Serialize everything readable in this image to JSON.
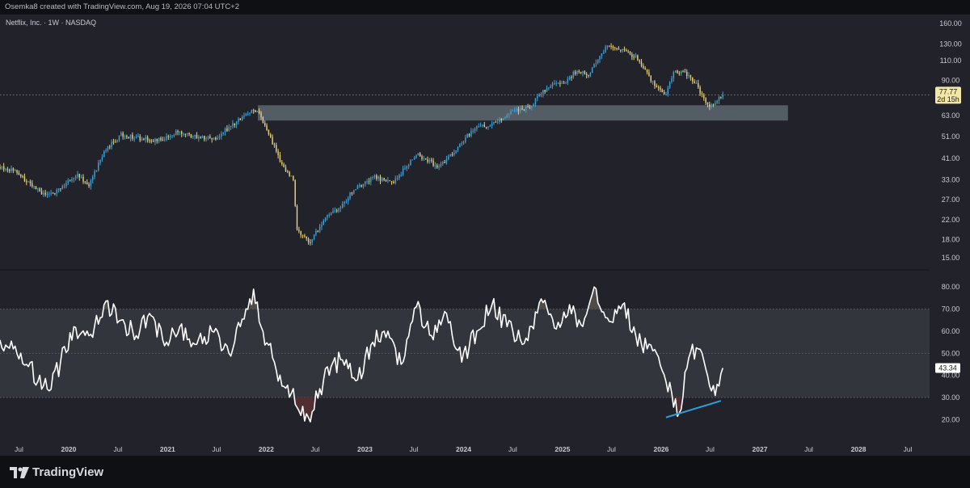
{
  "header": {
    "attribution": "Osemka8 created with TradingView.com, Aug 19, 2026 07:04 UTC+2"
  },
  "footer": {
    "brand": "TradingView"
  },
  "colors": {
    "background": "#22232a",
    "bar_background": "#0f1013",
    "candle_up": "#3fa0d6",
    "candle_down": "#e8cf7a",
    "rsi_line": "#ffffff",
    "rsi_band": "#33353d",
    "zone": "#5d6670",
    "divergence": "#2a9fd8",
    "price_badge": "#f3e7a3",
    "oversold_fill": "#5a2f34",
    "overbought_fill": "#58524a"
  },
  "chart_data": [
    {
      "type": "candlestick",
      "title": "Netflix, Inc. · 1W · NASDAQ",
      "y_scale": "log",
      "ylim": [
        13.5,
        175
      ],
      "y_ticks": [
        160.0,
        130.0,
        110.0,
        90.0,
        63.0,
        51.0,
        41.0,
        33.0,
        27.0,
        22.0,
        18.0,
        15.0
      ],
      "x_ticks": [
        "Jul",
        "2020",
        "Jul",
        "2021",
        "Jul",
        "2022",
        "Jul",
        "2023",
        "Jul",
        "2024",
        "Jul",
        "2025",
        "Jul",
        "2026",
        "Jul",
        "2027",
        "Jul",
        "2028",
        "Jul"
      ],
      "x_tick_dates": [
        "2019-07-01",
        "2020-01-01",
        "2020-07-01",
        "2021-01-01",
        "2021-07-01",
        "2022-01-01",
        "2022-07-01",
        "2023-01-01",
        "2023-07-01",
        "2024-01-01",
        "2024-07-01",
        "2025-01-01",
        "2025-07-01",
        "2026-01-01",
        "2026-07-01",
        "2027-01-01",
        "2027-07-01",
        "2028-01-01",
        "2028-07-01"
      ],
      "xlim": [
        "2019-04-22",
        "2028-09-20"
      ],
      "last_price": "77.77",
      "countdown": "2d 15h",
      "price_path": [
        [
          "2019-04-22",
          37.5
        ],
        [
          "2019-06-10",
          36.5
        ],
        [
          "2019-08-05",
          32.0
        ],
        [
          "2019-10-07",
          28.0
        ],
        [
          "2019-11-25",
          30.0
        ],
        [
          "2020-02-03",
          35.0
        ],
        [
          "2020-03-16",
          31.0
        ],
        [
          "2020-05-11",
          44.0
        ],
        [
          "2020-07-13",
          52.0
        ],
        [
          "2020-09-21",
          50.0
        ],
        [
          "2020-11-23",
          49.0
        ],
        [
          "2021-02-01",
          53.0
        ],
        [
          "2021-04-19",
          51.0
        ],
        [
          "2021-06-21",
          50.0
        ],
        [
          "2021-09-06",
          58.0
        ],
        [
          "2021-11-15",
          68.0
        ],
        [
          "2021-12-13",
          62.0
        ],
        [
          "2022-01-17",
          50.0
        ],
        [
          "2022-03-07",
          37.0
        ],
        [
          "2022-04-11",
          33.0
        ],
        [
          "2022-04-25",
          20.0
        ],
        [
          "2022-06-13",
          17.5
        ],
        [
          "2022-08-01",
          22.0
        ],
        [
          "2022-10-03",
          25.0
        ],
        [
          "2022-11-21",
          30.0
        ],
        [
          "2023-02-06",
          34.0
        ],
        [
          "2023-04-17",
          32.0
        ],
        [
          "2023-07-10",
          43.0
        ],
        [
          "2023-10-02",
          37.5
        ],
        [
          "2023-12-04",
          45.0
        ],
        [
          "2024-02-12",
          56.0
        ],
        [
          "2024-04-22",
          58.0
        ],
        [
          "2024-06-24",
          66.0
        ],
        [
          "2024-08-26",
          68.0
        ],
        [
          "2024-11-11",
          85.0
        ],
        [
          "2025-01-06",
          88.0
        ],
        [
          "2025-02-17",
          98.0
        ],
        [
          "2025-04-07",
          96.0
        ],
        [
          "2025-06-09",
          124.0
        ],
        [
          "2025-07-07",
          128.0
        ],
        [
          "2025-08-25",
          120.0
        ],
        [
          "2025-10-06",
          112.0
        ],
        [
          "2025-11-24",
          90.0
        ],
        [
          "2026-01-19",
          78.0
        ],
        [
          "2026-02-16",
          98.0
        ],
        [
          "2026-03-23",
          99.0
        ],
        [
          "2026-05-11",
          86.0
        ],
        [
          "2026-06-29",
          68.0
        ],
        [
          "2026-08-17",
          77.77
        ]
      ],
      "annotations": [
        {
          "type": "zone",
          "label": "support-resistance",
          "y_range": [
            60.0,
            70.0
          ],
          "x_range": [
            "2021-12-01",
            "2027-04-15"
          ]
        },
        {
          "type": "dotted-line",
          "y": 77.77
        }
      ]
    },
    {
      "type": "line",
      "title": "",
      "series_name": "",
      "ylim": [
        11,
        87
      ],
      "y_ticks": [
        80.0,
        70.0,
        60.0,
        50.0,
        40.0,
        30.0,
        20.0
      ],
      "band": [
        30,
        70
      ],
      "midline": 50,
      "last_value": "43.34",
      "x": [
        "2019-04-22",
        "2019-06-10",
        "2019-08-05",
        "2019-10-21",
        "2019-12-02",
        "2020-01-20",
        "2020-03-16",
        "2020-05-11",
        "2020-07-13",
        "2020-09-07",
        "2020-10-26",
        "2020-12-14",
        "2021-02-15",
        "2021-04-19",
        "2021-06-14",
        "2021-08-16",
        "2021-09-27",
        "2021-11-15",
        "2021-12-13",
        "2022-01-24",
        "2022-03-07",
        "2022-04-04",
        "2022-05-02",
        "2022-06-06",
        "2022-07-18",
        "2022-08-29",
        "2022-10-10",
        "2022-12-05",
        "2023-01-30",
        "2023-03-27",
        "2023-05-15",
        "2023-07-10",
        "2023-09-04",
        "2023-10-30",
        "2023-12-25",
        "2024-02-19",
        "2024-04-15",
        "2024-06-10",
        "2024-08-05",
        "2024-10-28",
        "2024-12-09",
        "2025-01-27",
        "2025-03-10",
        "2025-04-28",
        "2025-06-16",
        "2025-08-11",
        "2025-09-29",
        "2025-11-10",
        "2025-12-15",
        "2026-01-19",
        "2026-02-09",
        "2026-03-09",
        "2026-04-13",
        "2026-05-18",
        "2026-06-15",
        "2026-07-06",
        "2026-07-27",
        "2026-08-17"
      ],
      "values": [
        56,
        52,
        44,
        33,
        46,
        62,
        58,
        72,
        65,
        58,
        68,
        56,
        62,
        54,
        60,
        50,
        62,
        79,
        62,
        48,
        35,
        32,
        24,
        21,
        34,
        44,
        47,
        38,
        55,
        60,
        45,
        71,
        58,
        68,
        46,
        60,
        72,
        62,
        54,
        74,
        61,
        72,
        63,
        80,
        66,
        72,
        58,
        52,
        50,
        37,
        32,
        23,
        48,
        52,
        43,
        33,
        36,
        43.34
      ],
      "annotations": [
        {
          "type": "divergence-line",
          "from": [
            "2026-01-19",
            21.0
          ],
          "to": [
            "2026-08-10",
            28.5
          ]
        }
      ]
    }
  ]
}
